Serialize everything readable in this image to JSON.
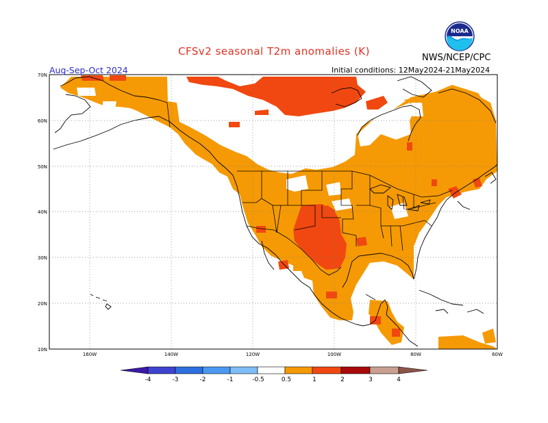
{
  "header": {
    "title": "CFSv2 seasonal T2m anomalies (K)",
    "agency": "NWS/NCEP/CPC",
    "season": "Aug-Sep-Oct 2024",
    "initial_conditions": "Initial conditions: 12May2024-21May2024",
    "logo_text": "NOAA"
  },
  "map": {
    "lat_ticks": [
      "70N",
      "60N",
      "50N",
      "40N",
      "30N",
      "20N",
      "10N"
    ],
    "lon_ticks": [
      "160W",
      "140W",
      "120W",
      "100W",
      "80W",
      "60W"
    ],
    "lat_range": [
      10,
      70
    ],
    "lon_range": [
      -170,
      -60
    ]
  },
  "legend": {
    "labels": [
      "-4",
      "-3",
      "-2",
      "-1",
      "-0.5",
      "0.5",
      "1",
      "2",
      "3",
      "4"
    ],
    "colors": [
      "#3b1aa8",
      "#3e43d0",
      "#2e6fe0",
      "#4a98f0",
      "#7fbdf7",
      "#ffffff",
      "#f59a05",
      "#f04810",
      "#a80a0a",
      "#c9a092",
      "#8c5548"
    ]
  },
  "anomaly_classes": {
    "0.5-1": "#f59a05",
    "1-2": "#f04810"
  }
}
